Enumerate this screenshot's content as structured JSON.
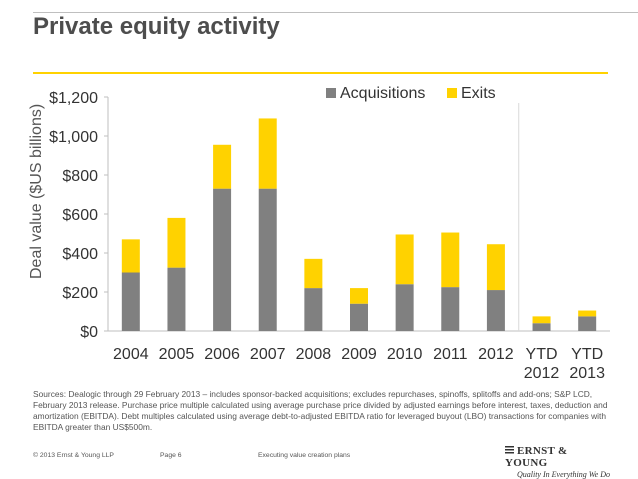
{
  "slide": {
    "title": "Private equity activity",
    "sources": "Sources: Dealogic through 29 February 2013 – includes sponsor-backed acquisitions; excludes repurchases, spinoffs, splitoffs and add-ons; S&P LCD, February 2013 release. Purchase price multiple calculated using average purchase price divided by adjusted earnings before interest, taxes, deduction and amortization (EBITDA). Debt multiples calculated using average debt-to-adjusted EBITDA ratio for leveraged buyout (LBO) transactions for companies with EBITDA greater than US$500m.",
    "footer": {
      "copyright": "© 2013 Ernst & Young LLP",
      "page": "Page 6",
      "document": "Executing value creation plans"
    },
    "logo": {
      "name": "ERNST & YOUNG",
      "tagline": "Quality In Everything We Do"
    }
  },
  "colors": {
    "acquisitions": "#808080",
    "exits": "#ffd200",
    "title_rule": "#ffd200"
  },
  "chart_data": {
    "type": "bar",
    "stacked": true,
    "title": "",
    "xlabel": "",
    "ylabel": "Deal value ($US billions)",
    "ylim": [
      0,
      1200
    ],
    "yticks": [
      0,
      200,
      400,
      600,
      800,
      1000,
      1200
    ],
    "ytick_labels": [
      "$0",
      "$200",
      "$400",
      "$600",
      "$800",
      "$1,000",
      "$1,200"
    ],
    "categories": [
      [
        "2004"
      ],
      [
        "2005"
      ],
      [
        "2006"
      ],
      [
        "2007"
      ],
      [
        "2008"
      ],
      [
        "2009"
      ],
      [
        "2010"
      ],
      [
        "2011"
      ],
      [
        "2012"
      ],
      [
        "YTD",
        "2012"
      ],
      [
        "YTD",
        "2013"
      ]
    ],
    "series": [
      {
        "name": "Acquisitions",
        "values": [
          300,
          325,
          730,
          730,
          220,
          140,
          240,
          225,
          210,
          40,
          75
        ]
      },
      {
        "name": "Exits",
        "values": [
          170,
          255,
          225,
          360,
          150,
          80,
          255,
          280,
          235,
          35,
          30
        ]
      }
    ],
    "legend_position": "top-right",
    "separator_before_index": 9,
    "grid": false
  }
}
